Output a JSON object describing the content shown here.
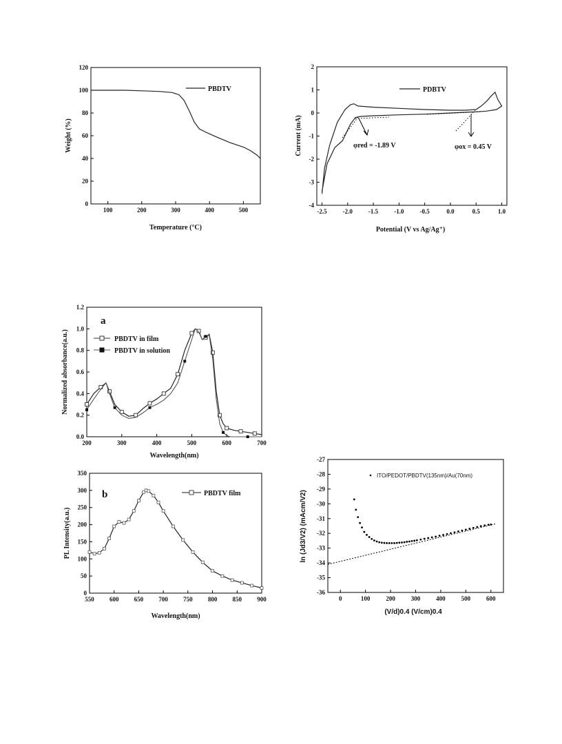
{
  "chart_data": [
    {
      "id": "tga",
      "type": "line",
      "xlabel": "Temperature (°C)",
      "ylabel": "Weight (%)",
      "xlim": [
        50,
        550
      ],
      "ylim": [
        0,
        120
      ],
      "x_ticks": [
        100,
        200,
        300,
        400,
        500
      ],
      "y_ticks": [
        0,
        20,
        40,
        60,
        80,
        100,
        120
      ],
      "legend": "top-right",
      "grid": false,
      "series": [
        {
          "name": "PBDTV",
          "x": [
            50,
            100,
            150,
            200,
            250,
            290,
            310,
            325,
            340,
            355,
            370,
            390,
            420,
            460,
            500,
            520,
            540,
            550
          ],
          "y": [
            100,
            100,
            100,
            99.5,
            99,
            98,
            96,
            91,
            82,
            72,
            66,
            63,
            59,
            54,
            50,
            47,
            43,
            40
          ]
        }
      ]
    },
    {
      "id": "cv",
      "type": "line",
      "xlabel": "Potential (V vs Ag/Ag⁺)",
      "ylabel": "Current (mA)",
      "xlim": [
        -2.6,
        1.1
      ],
      "ylim": [
        -4,
        2
      ],
      "x_ticks": [
        -2.5,
        -2.0,
        -1.5,
        -1.0,
        -0.5,
        0.0,
        0.5,
        1.0
      ],
      "y_ticks": [
        -4,
        -3,
        -2,
        -1,
        0,
        1,
        2
      ],
      "legend": "top-center",
      "grid": false,
      "series": [
        {
          "name": "PDBTV",
          "x": [
            -2.5,
            -2.45,
            -2.35,
            -2.2,
            -2.05,
            -1.95,
            -1.88,
            -1.8,
            -1.5,
            -1.0,
            -0.5,
            0.0,
            0.3,
            0.5,
            0.6,
            0.7,
            0.8,
            0.87,
            0.92,
            1.0,
            0.9,
            0.7,
            0.5,
            0.3,
            0.0,
            -0.5,
            -1.0,
            -1.5,
            -1.75,
            -1.85,
            -1.95,
            -2.1,
            -2.25,
            -2.4,
            -2.5
          ],
          "y": [
            -3.5,
            -2.4,
            -1.4,
            -0.4,
            0.15,
            0.35,
            0.4,
            0.3,
            0.25,
            0.2,
            0.15,
            0.12,
            0.12,
            0.15,
            0.3,
            0.5,
            0.75,
            0.9,
            0.6,
            0.3,
            0.15,
            0.08,
            0.05,
            0.03,
            0.0,
            -0.05,
            -0.08,
            -0.12,
            -0.15,
            -0.2,
            -0.5,
            -1.2,
            -1.5,
            -2.2,
            -3.4
          ]
        }
      ],
      "annotations": [
        {
          "text": "φred = -1.89 V",
          "x": -1.89,
          "y": -0.18
        },
        {
          "text": "φox = 0.45 V",
          "x": 0.45,
          "y": 0.08
        }
      ]
    },
    {
      "id": "absorbance",
      "type": "line",
      "xlabel": "Wavelength(nm)",
      "ylabel": "Normalized absorbance(a.u.)",
      "xlim": [
        200,
        700
      ],
      "ylim": [
        0.0,
        1.2
      ],
      "x_ticks": [
        200,
        300,
        400,
        500,
        600,
        700
      ],
      "y_ticks": [
        0.0,
        0.2,
        0.4,
        0.6,
        0.8,
        1.0,
        1.2
      ],
      "annotation": "a",
      "legend": "top-left",
      "grid": false,
      "series": [
        {
          "name": "PBDTV in film",
          "x": [
            200,
            220,
            240,
            255,
            265,
            280,
            300,
            320,
            340,
            360,
            380,
            400,
            420,
            440,
            460,
            480,
            500,
            510,
            520,
            530,
            540,
            550,
            560,
            570,
            580,
            590,
            600,
            620,
            640,
            660,
            680,
            700
          ],
          "y": [
            0.3,
            0.4,
            0.46,
            0.5,
            0.42,
            0.3,
            0.23,
            0.19,
            0.2,
            0.26,
            0.31,
            0.35,
            0.4,
            0.45,
            0.58,
            0.8,
            0.96,
            1.0,
            0.98,
            0.9,
            0.92,
            0.95,
            0.78,
            0.42,
            0.2,
            0.12,
            0.08,
            0.06,
            0.05,
            0.04,
            0.03,
            0.02
          ]
        },
        {
          "name": "PBDTV in solution",
          "x": [
            200,
            220,
            240,
            255,
            265,
            280,
            300,
            320,
            340,
            360,
            380,
            400,
            420,
            440,
            460,
            480,
            500,
            510,
            520,
            530,
            540,
            550,
            560,
            570,
            580,
            590,
            600,
            610,
            620,
            640,
            660,
            700
          ],
          "y": [
            0.25,
            0.35,
            0.44,
            0.5,
            0.4,
            0.27,
            0.2,
            0.17,
            0.18,
            0.22,
            0.27,
            0.3,
            0.34,
            0.4,
            0.5,
            0.7,
            0.9,
            1.0,
            0.97,
            0.9,
            0.93,
            0.94,
            0.72,
            0.35,
            0.12,
            0.04,
            0.01,
            0.0,
            0.0,
            0.0,
            0.0,
            0.0
          ]
        }
      ]
    },
    {
      "id": "pl",
      "type": "line",
      "xlabel": "Wavelength(nm)",
      "ylabel": "PL Intensity(a.u.)",
      "xlim": [
        550,
        900
      ],
      "ylim": [
        0,
        350
      ],
      "x_ticks": [
        550,
        600,
        650,
        700,
        750,
        800,
        850,
        900
      ],
      "y_ticks": [
        0,
        50,
        100,
        150,
        200,
        250,
        300,
        350
      ],
      "annotation": "b",
      "legend": "top-right",
      "grid": false,
      "series": [
        {
          "name": "PBDTV film",
          "x": [
            550,
            560,
            570,
            580,
            590,
            600,
            610,
            620,
            630,
            640,
            650,
            660,
            665,
            670,
            680,
            690,
            700,
            720,
            740,
            760,
            780,
            800,
            820,
            840,
            860,
            880,
            900
          ],
          "y": [
            120,
            115,
            118,
            130,
            160,
            195,
            208,
            205,
            215,
            240,
            270,
            295,
            300,
            298,
            285,
            265,
            240,
            195,
            155,
            120,
            90,
            65,
            50,
            38,
            30,
            22,
            15
          ]
        }
      ]
    },
    {
      "id": "sclc",
      "type": "scatter",
      "xlabel": "(V/d)0.4 (V/cm)0.4",
      "ylabel": "ln (Jd3/V2)   (mAcm/V2)",
      "xlim": [
        -50,
        650
      ],
      "ylim": [
        -36,
        -27
      ],
      "x_ticks": [
        0,
        100,
        200,
        300,
        400,
        500,
        600
      ],
      "y_ticks": [
        -36,
        -35,
        -34,
        -33,
        -32,
        -31,
        -30,
        -29,
        -28,
        -27
      ],
      "legend": "top-right",
      "grid": false,
      "series": [
        {
          "name": "ITO/PEDOT/PBDTV(135nm)/Au(70nm)",
          "x": [
            55,
            62,
            70,
            78,
            86,
            95,
            105,
            115,
            125,
            135,
            145,
            155,
            165,
            175,
            185,
            195,
            205,
            215,
            225,
            235,
            245,
            255,
            265,
            275,
            285,
            295,
            305,
            320,
            335,
            350,
            365,
            380,
            395,
            410,
            425,
            440,
            455,
            470,
            485,
            500,
            515,
            530,
            545,
            560,
            575,
            590,
            600
          ],
          "y": [
            -29.7,
            -30.4,
            -30.9,
            -31.3,
            -31.6,
            -31.9,
            -32.1,
            -32.25,
            -32.38,
            -32.48,
            -32.55,
            -32.6,
            -32.63,
            -32.65,
            -32.66,
            -32.66,
            -32.66,
            -32.66,
            -32.65,
            -32.63,
            -32.62,
            -32.6,
            -32.57,
            -32.55,
            -32.52,
            -32.5,
            -32.47,
            -32.42,
            -32.37,
            -32.32,
            -32.27,
            -32.22,
            -32.16,
            -32.11,
            -32.05,
            -31.99,
            -31.93,
            -31.87,
            -31.81,
            -31.75,
            -31.69,
            -31.63,
            -31.57,
            -31.51,
            -31.46,
            -31.42,
            -31.4
          ]
        }
      ],
      "fit_line": {
        "x": [
          -50,
          620
        ],
        "y": [
          -34.1,
          -31.35
        ]
      }
    }
  ],
  "text": {
    "tga_xlabel": "Temperature (°C)",
    "tga_ylabel": "Weight (%)",
    "tga_legend": "PBDTV",
    "cv_xlabel": "Potential (V vs Ag/Ag⁺)",
    "cv_ylabel": "Current (mA)",
    "cv_legend": "PDBTV",
    "cv_red_label": "φred = -1.89 V",
    "cv_ox_label": "φox = 0.45 V",
    "abs_letter": "a",
    "abs_xlabel": "Wavelength(nm)",
    "abs_ylabel": "Normalized absorbance(a.u.)",
    "abs_legend_film": "PBDTV in film",
    "abs_legend_solution": "PBDTV in solution",
    "pl_letter": "b",
    "pl_xlabel": "Wavelength(nm)",
    "pl_ylabel": "PL Intensity(a.u.)",
    "pl_legend": "PBDTV film",
    "sclc_xlabel": "(V/d)0.4 (V/cm)0.4",
    "sclc_ylabel": "ln (Jd3/V2)   (mAcm/V2)",
    "sclc_legend": "ITO/PEDOT/PBDTV(135nm)/Au(70nm)"
  }
}
